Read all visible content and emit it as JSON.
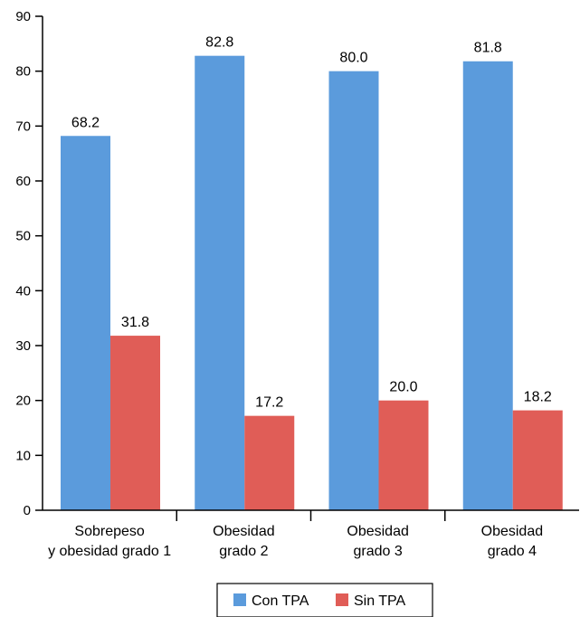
{
  "colors": {
    "con": "#5b9bdc",
    "sin": "#e05d57",
    "axis": "#000000"
  },
  "chart_data": {
    "type": "bar",
    "categories": [
      [
        "Sobrepeso",
        "y obesidad grado 1"
      ],
      [
        "Obesidad",
        "grado 2"
      ],
      [
        "Obesidad",
        "grado 3"
      ],
      [
        "Obesidad",
        "grado 4"
      ]
    ],
    "series": [
      {
        "name": "Con TPA",
        "values": [
          68.2,
          82.8,
          80.0,
          81.8
        ]
      },
      {
        "name": "Sin TPA",
        "values": [
          31.8,
          17.2,
          20.0,
          18.2
        ]
      }
    ],
    "data_labels": [
      [
        "68.2",
        "82.8",
        "80.0",
        "81.8"
      ],
      [
        "31.8",
        "17.2",
        "20.0",
        "18.2"
      ]
    ],
    "ylim": [
      0,
      90
    ],
    "yticks": [
      0,
      10,
      20,
      30,
      40,
      50,
      60,
      70,
      80,
      90
    ],
    "title": "",
    "xlabel": "",
    "ylabel": "",
    "grid": false,
    "legend_position": "bottom-center"
  }
}
